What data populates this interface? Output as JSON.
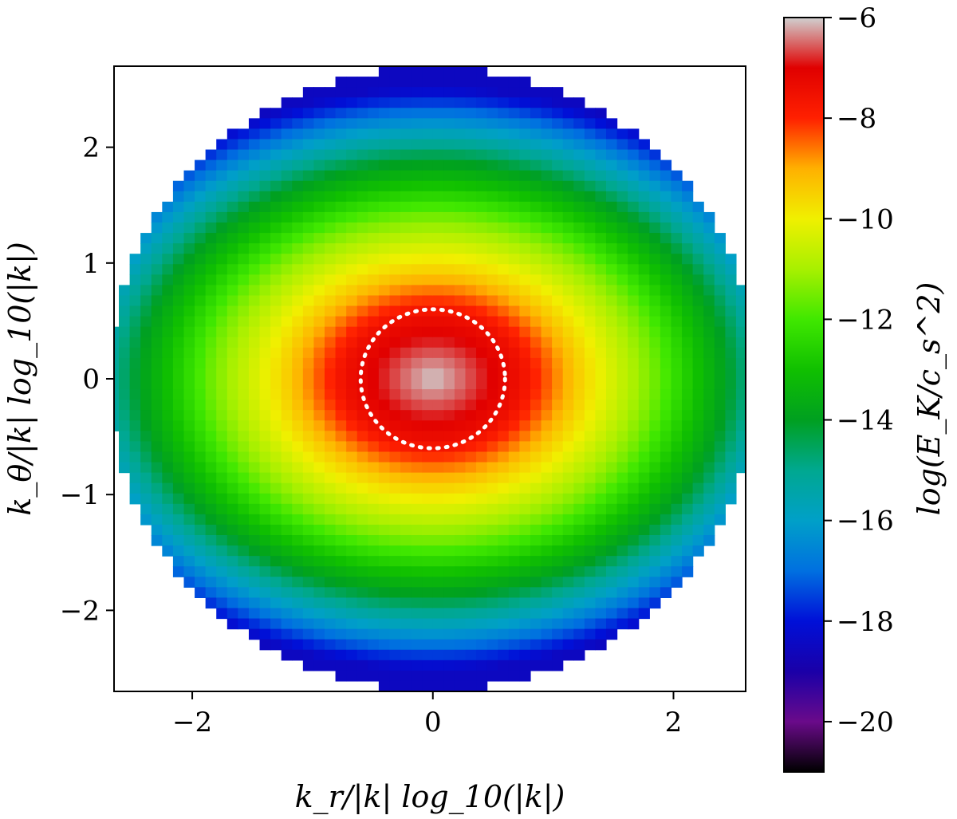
{
  "chart_data": {
    "type": "heatmap",
    "title": "",
    "xlabel": "k_r/|k| log_10(|k|)",
    "ylabel": "k_θ/|k| log_10(|k|)",
    "xlim": [
      -2.65,
      2.6
    ],
    "ylim": [
      -2.7,
      2.7
    ],
    "x_ticks": [
      {
        "value": -2,
        "label": "−2"
      },
      {
        "value": 0,
        "label": "0"
      },
      {
        "value": 2,
        "label": "2"
      }
    ],
    "y_ticks": [
      {
        "value": 2,
        "label": "2"
      },
      {
        "value": 1,
        "label": "1"
      },
      {
        "value": 0,
        "label": "0"
      },
      {
        "value": -1,
        "label": "−1"
      },
      {
        "value": -2,
        "label": "−2"
      }
    ],
    "colorbar": {
      "label": "log(E_K/c_s^2)",
      "range": [
        -21,
        -6
      ],
      "ticks": [
        {
          "value": -6,
          "label": "−6"
        },
        {
          "value": -8,
          "label": "−8"
        },
        {
          "value": -10,
          "label": "−10"
        },
        {
          "value": -12,
          "label": "−12"
        },
        {
          "value": -14,
          "label": "−14"
        },
        {
          "value": -16,
          "label": "−16"
        },
        {
          "value": -18,
          "label": "−18"
        },
        {
          "value": -20,
          "label": "−20"
        }
      ],
      "colormap": [
        {
          "value": -21,
          "color": "#000000"
        },
        {
          "value": -20,
          "color": "#6a0a8a"
        },
        {
          "value": -19,
          "color": "#1a00a8"
        },
        {
          "value": -18,
          "color": "#0010d8"
        },
        {
          "value": -17,
          "color": "#0070e0"
        },
        {
          "value": -16,
          "color": "#00a0c8"
        },
        {
          "value": -15,
          "color": "#00a890"
        },
        {
          "value": -14,
          "color": "#00a020"
        },
        {
          "value": -13,
          "color": "#10c000"
        },
        {
          "value": -12,
          "color": "#40e800"
        },
        {
          "value": -11,
          "color": "#a8f000"
        },
        {
          "value": -10,
          "color": "#f0f000"
        },
        {
          "value": -9,
          "color": "#ffb000"
        },
        {
          "value": -8,
          "color": "#ff2000"
        },
        {
          "value": -7,
          "color": "#e00000"
        },
        {
          "value": -6,
          "color": "#d0d0d0"
        }
      ]
    },
    "reference_circle": {
      "radius": 0.6,
      "style": "dotted",
      "color": "#ffffff"
    },
    "domain_radius": 2.7,
    "field_levels": [
      {
        "radius": 0.0,
        "value": -6.0
      },
      {
        "radius": 0.6,
        "value": -7.5
      },
      {
        "radius": 1.0,
        "value": -9.5
      },
      {
        "radius": 1.5,
        "value": -11.5
      },
      {
        "radius": 2.0,
        "value": -14.0
      },
      {
        "radius": 2.4,
        "value": -16.5
      },
      {
        "radius": 2.7,
        "value": -18.5
      }
    ]
  }
}
